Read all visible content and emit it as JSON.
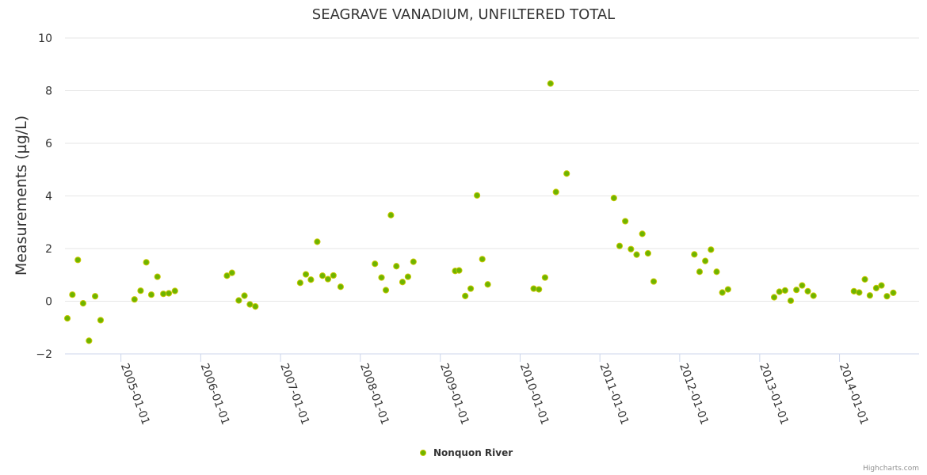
{
  "chart_data": {
    "type": "scatter",
    "title": "SEAGRAVE VANADIUM, UNFILTERED TOTAL",
    "xlabel": "",
    "ylabel": "Measurements (µg/L)",
    "ylim": [
      -2,
      10
    ],
    "yticks": [
      -2,
      0,
      2,
      4,
      6,
      8,
      10
    ],
    "xlim": [
      "2004-04-20",
      "2014-12-31"
    ],
    "xticks": [
      "2005-01-01",
      "2006-01-01",
      "2007-01-01",
      "2008-01-01",
      "2009-01-01",
      "2010-01-01",
      "2011-01-01",
      "2012-01-01",
      "2013-01-01",
      "2014-01-01"
    ],
    "series": [
      {
        "name": "Nonquon River",
        "color": "#6eb400",
        "points": [
          [
            "2004-05-01",
            -0.65
          ],
          [
            "2004-05-24",
            0.25
          ],
          [
            "2004-06-18",
            1.57
          ],
          [
            "2004-07-12",
            -0.08
          ],
          [
            "2004-08-08",
            -1.5
          ],
          [
            "2004-09-05",
            0.19
          ],
          [
            "2004-09-30",
            -0.72
          ],
          [
            "2005-03-04",
            0.07
          ],
          [
            "2005-04-01",
            0.4
          ],
          [
            "2005-04-27",
            1.48
          ],
          [
            "2005-05-20",
            0.25
          ],
          [
            "2005-06-17",
            0.93
          ],
          [
            "2005-07-14",
            0.28
          ],
          [
            "2005-08-08",
            0.3
          ],
          [
            "2005-09-05",
            0.39
          ],
          [
            "2006-05-01",
            0.97
          ],
          [
            "2006-05-24",
            1.08
          ],
          [
            "2006-06-24",
            0.03
          ],
          [
            "2006-07-20",
            0.21
          ],
          [
            "2006-08-14",
            -0.12
          ],
          [
            "2006-09-08",
            -0.2
          ],
          [
            "2007-04-01",
            0.7
          ],
          [
            "2007-04-27",
            1.02
          ],
          [
            "2007-05-20",
            0.82
          ],
          [
            "2007-06-18",
            2.26
          ],
          [
            "2007-07-12",
            0.97
          ],
          [
            "2007-08-06",
            0.84
          ],
          [
            "2007-08-31",
            0.98
          ],
          [
            "2007-10-03",
            0.55
          ],
          [
            "2008-03-08",
            1.42
          ],
          [
            "2008-04-07",
            0.9
          ],
          [
            "2008-04-27",
            0.42
          ],
          [
            "2008-05-20",
            3.27
          ],
          [
            "2008-06-14",
            1.33
          ],
          [
            "2008-07-12",
            0.73
          ],
          [
            "2008-08-06",
            0.93
          ],
          [
            "2008-08-31",
            1.5
          ],
          [
            "2009-03-10",
            1.15
          ],
          [
            "2009-03-28",
            1.17
          ],
          [
            "2009-04-25",
            0.2
          ],
          [
            "2009-05-20",
            0.48
          ],
          [
            "2009-06-18",
            4.02
          ],
          [
            "2009-07-12",
            1.6
          ],
          [
            "2009-08-06",
            0.64
          ],
          [
            "2010-03-04",
            0.48
          ],
          [
            "2010-03-28",
            0.45
          ],
          [
            "2010-04-25",
            0.9
          ],
          [
            "2010-05-20",
            8.27
          ],
          [
            "2010-06-14",
            4.15
          ],
          [
            "2010-08-02",
            4.85
          ],
          [
            "2011-03-06",
            3.92
          ],
          [
            "2011-04-01",
            2.1
          ],
          [
            "2011-04-27",
            3.04
          ],
          [
            "2011-05-23",
            1.98
          ],
          [
            "2011-06-18",
            1.77
          ],
          [
            "2011-07-14",
            2.56
          ],
          [
            "2011-08-09",
            1.82
          ],
          [
            "2011-09-04",
            0.75
          ],
          [
            "2012-03-08",
            1.78
          ],
          [
            "2012-04-01",
            1.12
          ],
          [
            "2012-04-27",
            1.53
          ],
          [
            "2012-05-23",
            1.96
          ],
          [
            "2012-06-18",
            1.12
          ],
          [
            "2012-07-14",
            0.33
          ],
          [
            "2012-08-09",
            0.45
          ],
          [
            "2013-03-08",
            0.15
          ],
          [
            "2013-04-01",
            0.36
          ],
          [
            "2013-04-27",
            0.41
          ],
          [
            "2013-05-23",
            0.02
          ],
          [
            "2013-06-18",
            0.43
          ],
          [
            "2013-07-14",
            0.6
          ],
          [
            "2013-08-09",
            0.38
          ],
          [
            "2013-09-04",
            0.21
          ],
          [
            "2014-03-08",
            0.38
          ],
          [
            "2014-04-01",
            0.33
          ],
          [
            "2014-04-27",
            0.83
          ],
          [
            "2014-05-20",
            0.22
          ],
          [
            "2014-06-18",
            0.5
          ],
          [
            "2014-07-12",
            0.6
          ],
          [
            "2014-08-06",
            0.19
          ],
          [
            "2014-09-04",
            0.32
          ]
        ]
      }
    ],
    "legend": "bottom-center",
    "credits": "Highcharts.com"
  }
}
